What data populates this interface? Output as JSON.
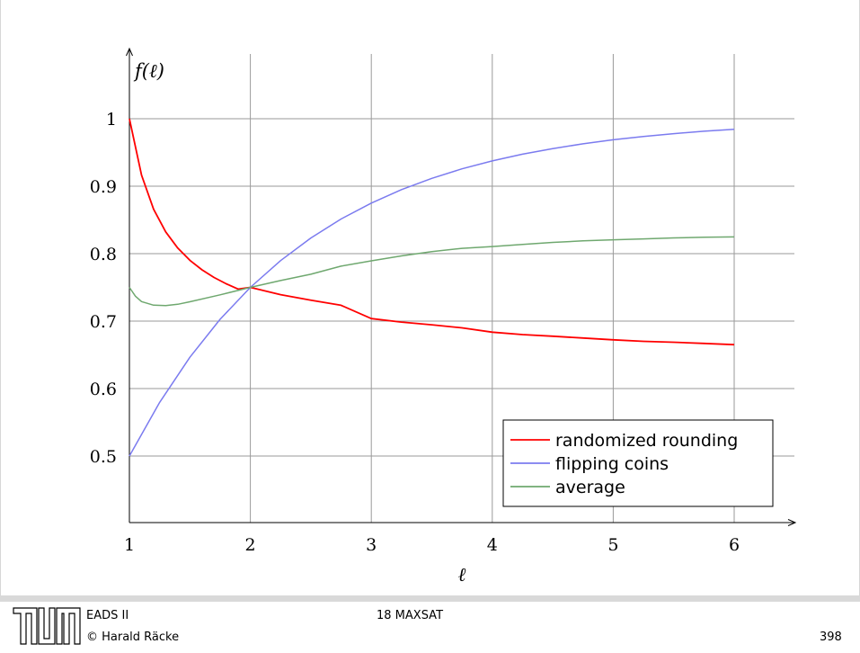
{
  "chart_data": {
    "type": "line",
    "ylabel": "f(ℓ)",
    "xlabel": "ℓ",
    "xlim": [
      1,
      6.5
    ],
    "ylim": [
      0.4,
      1.07
    ],
    "xticks": [
      "1",
      "2",
      "3",
      "4",
      "5",
      "6"
    ],
    "yticks": [
      "0.5",
      "0.6",
      "0.7",
      "0.8",
      "0.9",
      "1"
    ],
    "grid": true,
    "legend": "bottom-right",
    "series": [
      {
        "name": "randomized rounding",
        "color": "#ff0000",
        "x": [
          1.0,
          1.1,
          1.2,
          1.3,
          1.4,
          1.5,
          1.6,
          1.7,
          1.8,
          1.9,
          2.0,
          2.25,
          2.5,
          2.75,
          3.0,
          3.25,
          3.5,
          3.75,
          4.0,
          4.25,
          4.5,
          4.75,
          5.0,
          5.25,
          5.5,
          5.75,
          6.0
        ],
        "y": [
          1.0,
          0.9164,
          0.8659,
          0.8322,
          0.8082,
          0.7901,
          0.776,
          0.7647,
          0.7554,
          0.7475,
          0.75,
          0.7392,
          0.731,
          0.7234,
          0.7037,
          0.6985,
          0.6946,
          0.69,
          0.6836,
          0.68,
          0.6776,
          0.675,
          0.6723,
          0.67,
          0.6687,
          0.667,
          0.6651
        ]
      },
      {
        "name": "flipping coins",
        "color": "#7b7bef",
        "x": [
          1.0,
          1.25,
          1.5,
          1.75,
          2.0,
          2.25,
          2.5,
          2.75,
          3.0,
          3.25,
          3.5,
          3.75,
          4.0,
          4.25,
          4.5,
          4.75,
          5.0,
          5.25,
          5.5,
          5.75,
          6.0
        ],
        "y": [
          0.5,
          0.5796,
          0.6464,
          0.7027,
          0.75,
          0.7898,
          0.8232,
          0.8513,
          0.875,
          0.8949,
          0.9116,
          0.9257,
          0.9375,
          0.9474,
          0.9558,
          0.9628,
          0.9688,
          0.9737,
          0.9779,
          0.9814,
          0.9844
        ]
      },
      {
        "name": "average",
        "color": "#6fa86f",
        "x": [
          1.0,
          1.05,
          1.1,
          1.2,
          1.3,
          1.4,
          1.5,
          1.75,
          2.0,
          2.25,
          2.5,
          2.75,
          3.0,
          3.25,
          3.5,
          3.75,
          4.0,
          4.25,
          4.5,
          4.75,
          5.0,
          5.25,
          5.5,
          5.75,
          6.0
        ],
        "y": [
          0.75,
          0.737,
          0.729,
          0.7236,
          0.7229,
          0.725,
          0.7287,
          0.7389,
          0.75,
          0.7602,
          0.7695,
          0.7815,
          0.7894,
          0.7967,
          0.8031,
          0.8079,
          0.8106,
          0.8137,
          0.8167,
          0.8189,
          0.8206,
          0.8218,
          0.8233,
          0.8242,
          0.8248
        ]
      }
    ]
  },
  "footer": {
    "course": "EADS II",
    "author": "© Harald Räcke",
    "section": "18 MAXSAT",
    "page": "398"
  }
}
